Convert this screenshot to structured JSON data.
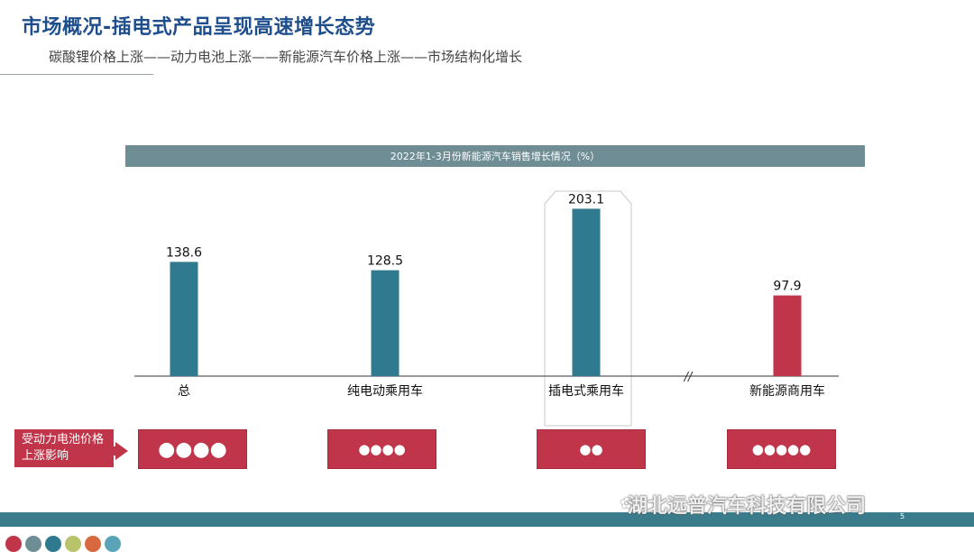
{
  "header": {
    "title": "市场概况-插电式产品呈现高速增长态势",
    "subtitle": "碳酸锂价格上涨——动力电池上涨——新能源汽车价格上涨——市场结构化增长"
  },
  "chart_data": {
    "type": "bar",
    "title": "2022年1-3月份新能源汽车销售增长情况（%）",
    "categories": [
      "总",
      "纯电动乘用车",
      "插电式乘用车",
      "新能源商用车"
    ],
    "values": [
      138.6,
      128.5,
      203.1,
      97.9
    ],
    "value_labels": [
      "138.6",
      "128.5",
      "203.1",
      "97.9"
    ],
    "bar_colors": [
      "#2f7a8e",
      "#2f7a8e",
      "#2f7a8e",
      "#c0354a"
    ],
    "highlighted_category": "插电式乘用车",
    "axis_break_symbol": "//",
    "ylim": [
      0,
      220
    ],
    "xlabel": "",
    "ylabel": "",
    "grid": false
  },
  "impact": {
    "label": "受动力电池价格上涨影响",
    "ratings": [
      "●●●●",
      "●●●●",
      "●●",
      "●●●●●"
    ]
  },
  "footer": {
    "watermark": "湖北远普汽车科技有限公司",
    "watermark_icon": "wechat-icon",
    "page_number": "5"
  },
  "theme": {
    "title_color": "#1f4e8c",
    "teal": "#2f7a8e",
    "red": "#c0354a",
    "banner": "#6f8d95",
    "dot_colors": [
      "#c0354a",
      "#6f8d95",
      "#2f7a8e",
      "#b9c46a",
      "#d8683f",
      "#5aa4b8"
    ]
  }
}
